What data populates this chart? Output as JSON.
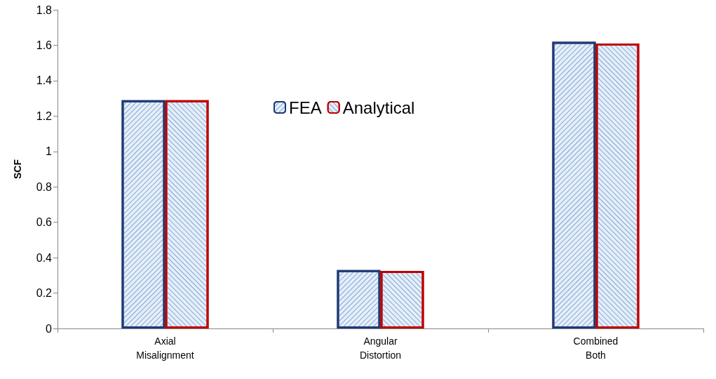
{
  "chart_data": {
    "type": "bar",
    "ylabel": "SCF",
    "categories": [
      "Axial\nMisalignment",
      "Angular\nDistortion",
      "Combined\nBoth"
    ],
    "series": [
      {
        "name": "FEA",
        "color": "#1f3a73",
        "values": [
          1.29,
          0.33,
          1.62
        ]
      },
      {
        "name": "Analytical",
        "color": "#c00000",
        "values": [
          1.29,
          0.325,
          1.61
        ]
      }
    ],
    "ylim": [
      0,
      1.8
    ],
    "yticks": [
      0,
      0.2,
      0.4,
      0.6,
      0.8,
      1,
      1.2,
      1.4,
      1.6,
      1.8
    ],
    "grid": false,
    "legend": "top"
  }
}
